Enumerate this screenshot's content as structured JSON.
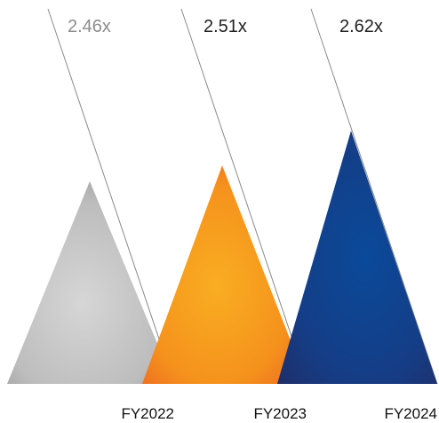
{
  "chart_data": {
    "type": "bar",
    "style": "overlapping-triangles-with-diagonal-leader-lines",
    "categories": [
      "FY2022",
      "FY2023",
      "FY2024"
    ],
    "values": [
      2.46,
      2.51,
      2.62
    ],
    "value_labels": [
      "2.46x",
      "2.51x",
      "2.62x"
    ],
    "colors": [
      "#c0c0c0",
      "#f58a1f",
      "#1b3f8c"
    ],
    "label_colors": [
      "#8c8c8c",
      "#222222",
      "#222222"
    ],
    "value_suffix": "x",
    "title": "",
    "xlabel": "",
    "ylabel": "",
    "grid": false,
    "legend": "none"
  }
}
